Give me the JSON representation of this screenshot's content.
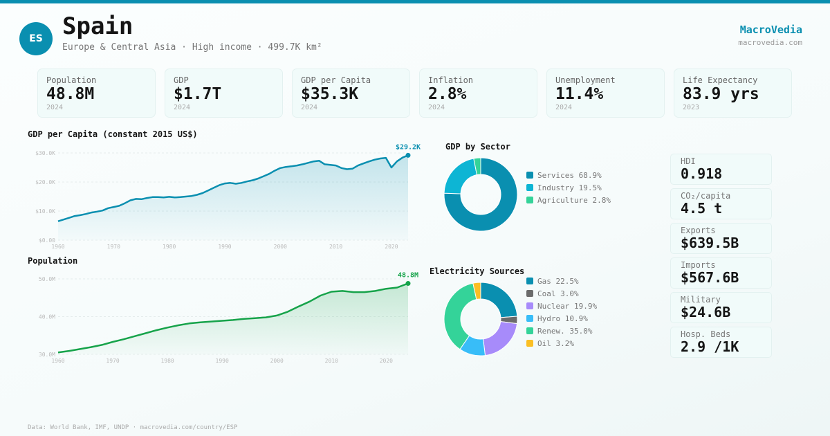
{
  "colors": {
    "accent": "#0a8fb0",
    "gdp_line": "#0a8fb0",
    "pop_line": "#16a34a"
  },
  "header": {
    "flag_code": "ES",
    "title": "Spain",
    "subtitle": "Europe & Central Asia · High income · 499.7K km²",
    "brand": "MacroVedia",
    "brand_url": "macrovedia.com"
  },
  "kpis": [
    {
      "label": "Population",
      "value": "48.8M",
      "year": "2024"
    },
    {
      "label": "GDP",
      "value": "$1.7T",
      "year": "2024"
    },
    {
      "label": "GDP per Capita",
      "value": "$35.3K",
      "year": "2024"
    },
    {
      "label": "Inflation",
      "value": "2.8%",
      "year": "2024"
    },
    {
      "label": "Unemployment",
      "value": "11.4%",
      "year": "2024"
    },
    {
      "label": "Life Expectancy",
      "value": "83.9 yrs",
      "year": "2023"
    }
  ],
  "side_stats": [
    {
      "label": "HDI",
      "value": "0.918"
    },
    {
      "label": "CO₂/capita",
      "value": "4.5 t"
    },
    {
      "label": "Exports",
      "value": "$639.5B"
    },
    {
      "label": "Imports",
      "value": "$567.6B"
    },
    {
      "label": "Military",
      "value": "$24.6B"
    },
    {
      "label": "Hosp. Beds",
      "value": "2.9 /1K"
    }
  ],
  "footer": "Data: World Bank, IMF, UNDP · macrovedia.com/country/ESP",
  "chart_data": [
    {
      "type": "area",
      "title": "GDP per Capita (constant 2015 US$)",
      "xlabel": "",
      "ylabel": "",
      "ylim": [
        0,
        30000
      ],
      "yticks": [
        0,
        10000,
        20000,
        30000
      ],
      "ytick_labels": [
        "$0.00",
        "$10.0K",
        "$20.0K",
        "$30.0K"
      ],
      "xticks": [
        1960,
        1970,
        1980,
        1990,
        2000,
        2010,
        2020
      ],
      "grid": true,
      "end_label": "$29.2K",
      "x": [
        1960,
        1961,
        1962,
        1963,
        1964,
        1965,
        1966,
        1967,
        1968,
        1969,
        1970,
        1971,
        1972,
        1973,
        1974,
        1975,
        1976,
        1977,
        1978,
        1979,
        1980,
        1981,
        1982,
        1983,
        1984,
        1985,
        1986,
        1987,
        1988,
        1989,
        1990,
        1991,
        1992,
        1993,
        1994,
        1995,
        1996,
        1997,
        1998,
        1999,
        2000,
        2001,
        2002,
        2003,
        2004,
        2005,
        2006,
        2007,
        2008,
        2009,
        2010,
        2011,
        2012,
        2013,
        2014,
        2015,
        2016,
        2017,
        2018,
        2019,
        2020,
        2021,
        2022,
        2023
      ],
      "values": [
        6500,
        7100,
        7700,
        8300,
        8600,
        9000,
        9500,
        9800,
        10200,
        11000,
        11400,
        11800,
        12700,
        13700,
        14200,
        14100,
        14500,
        14800,
        14800,
        14700,
        14900,
        14700,
        14800,
        15000,
        15200,
        15600,
        16200,
        17100,
        18000,
        18900,
        19500,
        19700,
        19400,
        19700,
        20200,
        20600,
        21200,
        22000,
        22800,
        23900,
        24800,
        25200,
        25400,
        25700,
        26100,
        26600,
        27100,
        27300,
        26100,
        25900,
        25700,
        24800,
        24400,
        24600,
        25700,
        26400,
        27100,
        27700,
        28100,
        28300,
        25000,
        27100,
        28400,
        29200
      ]
    },
    {
      "type": "area",
      "title": "Population",
      "xlabel": "",
      "ylabel": "",
      "ylim": [
        29000,
        50500
      ],
      "yticks": [
        30000000,
        40000000,
        50000000
      ],
      "ytick_labels": [
        "30.0M",
        "40.0M",
        "50.0M"
      ],
      "xticks": [
        1960,
        1970,
        1980,
        1990,
        2000,
        2010,
        2020
      ],
      "grid": true,
      "end_label": "48.8M",
      "x": [
        1960,
        1962,
        1964,
        1966,
        1968,
        1970,
        1972,
        1974,
        1976,
        1978,
        1980,
        1982,
        1984,
        1986,
        1988,
        1990,
        1992,
        1994,
        1996,
        1998,
        2000,
        2002,
        2004,
        2006,
        2008,
        2010,
        2012,
        2014,
        2016,
        2018,
        2020,
        2022,
        2024
      ],
      "values_millions": [
        30.5,
        30.9,
        31.4,
        31.9,
        32.5,
        33.3,
        34.0,
        34.8,
        35.6,
        36.4,
        37.1,
        37.7,
        38.2,
        38.5,
        38.7,
        38.9,
        39.1,
        39.4,
        39.6,
        39.8,
        40.3,
        41.3,
        42.7,
        44.0,
        45.6,
        46.6,
        46.8,
        46.5,
        46.5,
        46.8,
        47.4,
        47.7,
        48.8
      ]
    },
    {
      "type": "pie",
      "title": "GDP by Sector",
      "labels": [
        "Services",
        "Industry",
        "Agriculture"
      ],
      "values": [
        68.9,
        19.5,
        2.8
      ],
      "legend": [
        "Services 68.9%",
        "Industry 19.5%",
        "Agriculture 2.8%"
      ],
      "colors": [
        "#0a8fb0",
        "#0db5d4",
        "#34d399"
      ],
      "legend_position": "right"
    },
    {
      "type": "pie",
      "title": "Electricity Sources",
      "labels": [
        "Gas",
        "Coal",
        "Nuclear",
        "Hydro",
        "Renew.",
        "Oil"
      ],
      "values": [
        22.5,
        3.0,
        19.9,
        10.9,
        35.0,
        3.2
      ],
      "legend": [
        "Gas 22.5%",
        "Coal 3.0%",
        "Nuclear 19.9%",
        "Hydro 10.9%",
        "Renew. 35.0%",
        "Oil 3.2%"
      ],
      "colors": [
        "#0a8fb0",
        "#6b6b6b",
        "#a78bfa",
        "#38bdf8",
        "#34d399",
        "#fbbf24"
      ],
      "legend_position": "right"
    }
  ]
}
